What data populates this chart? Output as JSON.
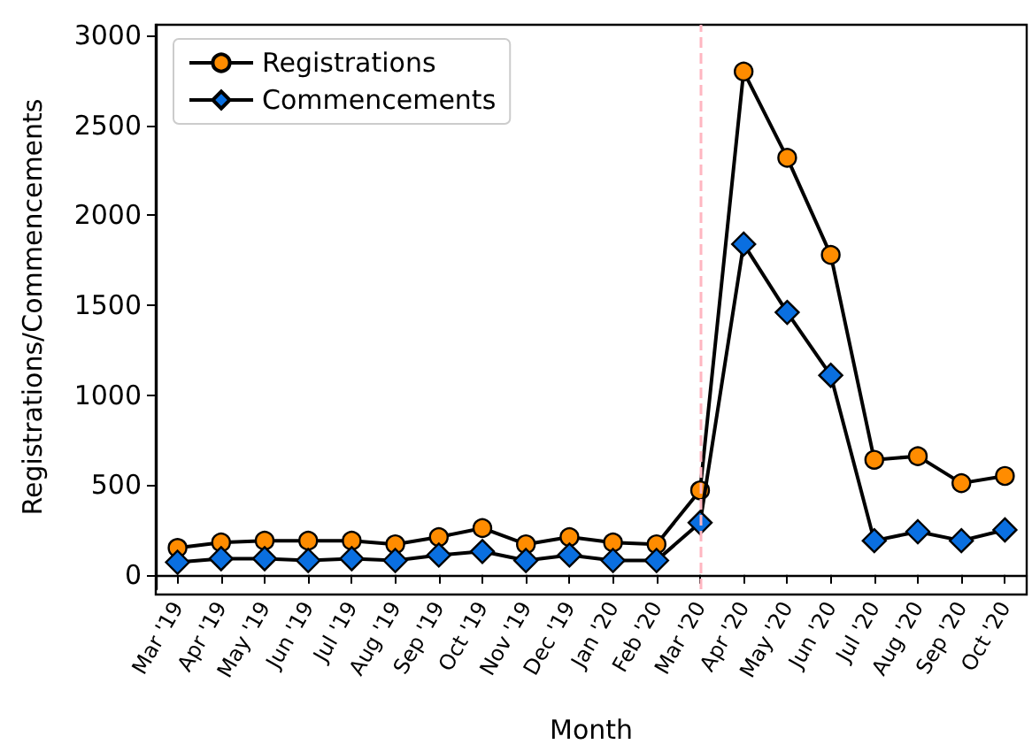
{
  "chart_data": {
    "type": "line",
    "xlabel": "Month",
    "ylabel": "Registrations/Commencements",
    "categories": [
      "Mar '19",
      "Apr '19",
      "May '19",
      "Jun '19",
      "Jul '19",
      "Aug '19",
      "Sep '19",
      "Oct '19",
      "Nov '19",
      "Dec '19",
      "Jan '20",
      "Feb '20",
      "Mar '20",
      "Apr '20",
      "May '20",
      "Jun '20",
      "Jul '20",
      "Aug '20",
      "Sep '20",
      "Oct '20"
    ],
    "series": [
      {
        "name": "Registrations",
        "color": "#ff8c00",
        "marker": "circle",
        "values": [
          150,
          180,
          190,
          190,
          190,
          170,
          210,
          260,
          170,
          210,
          180,
          170,
          470,
          2800,
          2320,
          1780,
          640,
          660,
          510,
          550
        ]
      },
      {
        "name": "Commencements",
        "color": "#0a6fe0",
        "marker": "diamond",
        "values": [
          70,
          90,
          90,
          80,
          90,
          80,
          110,
          130,
          80,
          110,
          80,
          80,
          290,
          1840,
          1460,
          1110,
          190,
          240,
          190,
          250
        ]
      }
    ],
    "ylim": [
      -80,
      3060
    ],
    "yticks": [
      0,
      500,
      1000,
      1500,
      2000,
      2500,
      3000
    ],
    "grid": false,
    "legend": "top left",
    "line_style": "solid",
    "ref_lines": [
      {
        "axis": "x",
        "value": "Mar '20",
        "color": "#ffb6c1",
        "line_style": "dashed"
      }
    ]
  }
}
